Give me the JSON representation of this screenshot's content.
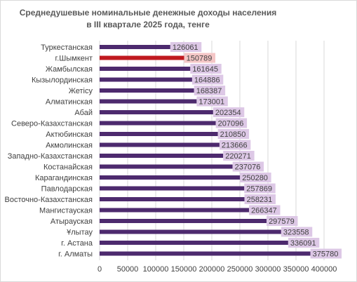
{
  "chart_data": {
    "type": "bar",
    "orientation": "horizontal",
    "title_line1": "Среднедушевые номинальные  денежные доходы населения",
    "title_line2": "в III квартале  2025 года, тенге",
    "xlim": [
      0,
      400000
    ],
    "xticks": [
      "0",
      "50000",
      "100000",
      "150000",
      "200000",
      "250000",
      "300000",
      "350000",
      "400000"
    ],
    "grid": "vertical",
    "categories": [
      "Туркестанская",
      "г.Шымкент",
      "Жамбылская",
      "Кызылординская",
      "Жетісу",
      "Алматинская",
      "Абай",
      "Северо-Казахстанская",
      "Актюбинская",
      "Акмолинская",
      "Западно-Казахстанская",
      "Костанайская",
      "Карагандинская",
      "Павлодарская",
      "Восточно-Казахстанская",
      "Мангистауская",
      "Атырауская",
      "Ұлытау",
      "г. Астана",
      "г. Алматы"
    ],
    "values": [
      126061,
      150789,
      161645,
      164886,
      168387,
      173001,
      202354,
      207096,
      210850,
      213666,
      220271,
      237076,
      250280,
      257869,
      258231,
      266347,
      297579,
      323558,
      336091,
      375780
    ],
    "value_labels": [
      "126061",
      "150789",
      "161645",
      "164886",
      "168387",
      "173001",
      "202354",
      "207096",
      "210850",
      "213666",
      "220271",
      "237076",
      "250280",
      "257869",
      "258231",
      "266347",
      "297579",
      "323558",
      "336091",
      "375780"
    ],
    "bar_color": "#4d2a6e",
    "highlight_index": 1,
    "highlight_color": "#c0191f",
    "label_bg_color": "#ddc8e6",
    "highlight_label_bg_color": "#f4c6c6"
  }
}
